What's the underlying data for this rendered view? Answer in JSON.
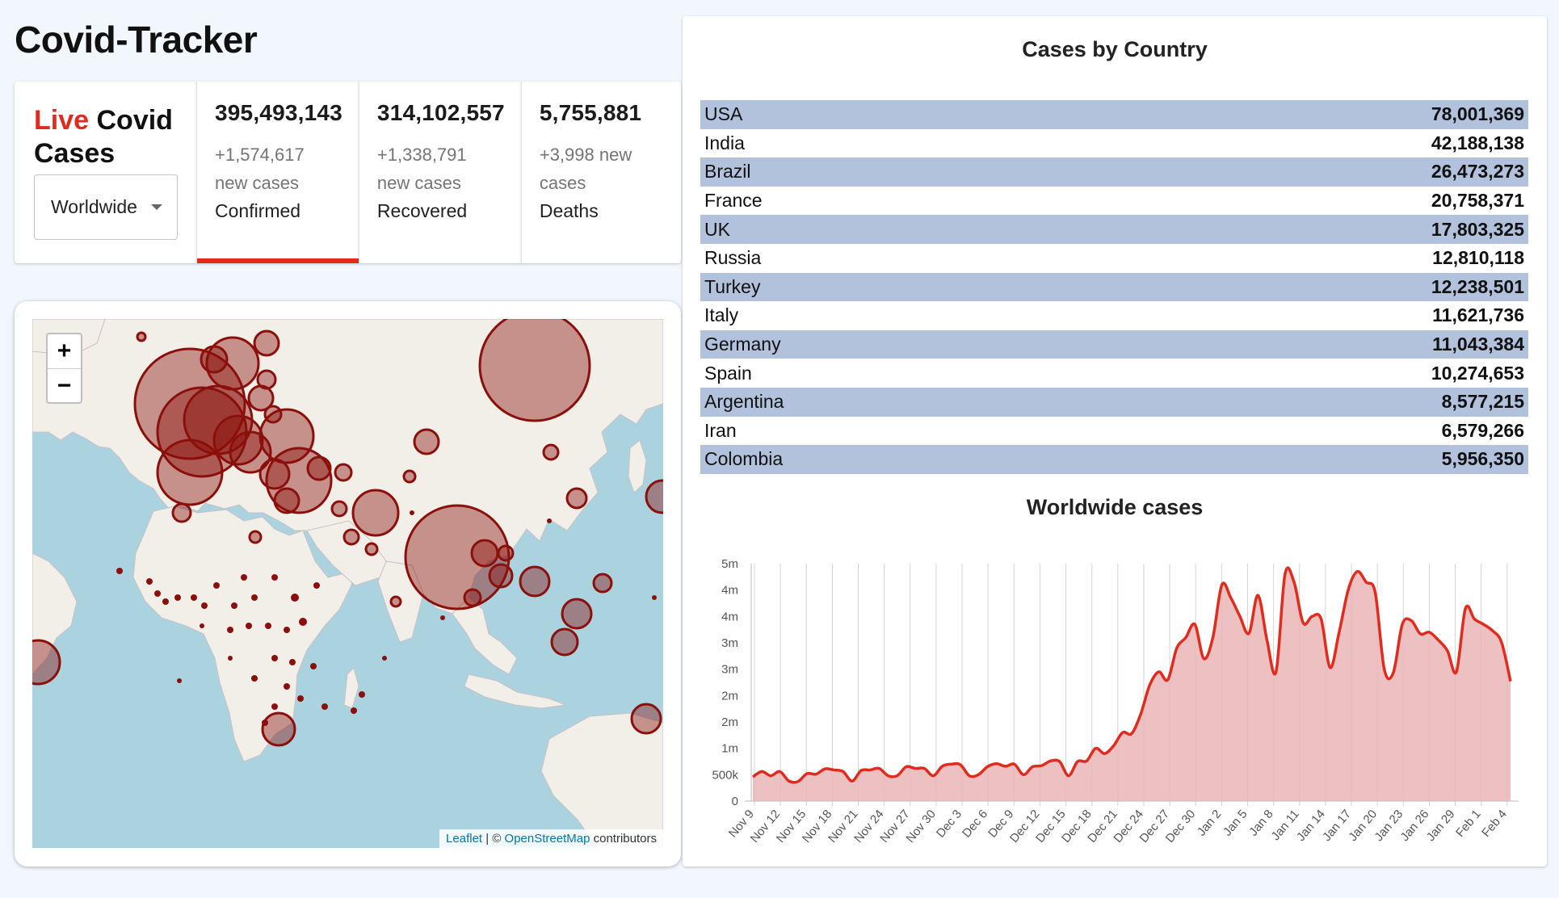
{
  "app": {
    "title": "Covid-Tracker"
  },
  "stats": {
    "heading_live": "Live",
    "heading_rest": "Covid Cases",
    "country_select": {
      "value": "Worldwide"
    },
    "boxes": [
      {
        "total": "395,493,143",
        "new_line1": "+1,574,617",
        "new_line2": "new cases",
        "label": "Confirmed",
        "active": true
      },
      {
        "total": "314,102,557",
        "new_line1": "+1,338,791",
        "new_line2": "new cases",
        "label": "Recovered",
        "active": false
      },
      {
        "total": "5,755,881",
        "new_line1": "+3,998 new",
        "new_line2": "cases",
        "label": "Deaths",
        "active": false
      }
    ],
    "accent_color": "#e02c1f"
  },
  "map": {
    "zoom_in": "+",
    "zoom_out": "−",
    "attribution": {
      "leaflet": "Leaflet",
      "separator": " | © ",
      "osm": "OpenStreetMap",
      "suffix": " contributors"
    }
  },
  "table": {
    "title": "Cases by Country",
    "rows": [
      {
        "country": "USA",
        "cases": "78,001,369"
      },
      {
        "country": "India",
        "cases": "42,188,138"
      },
      {
        "country": "Brazil",
        "cases": "26,473,273"
      },
      {
        "country": "France",
        "cases": "20,758,371"
      },
      {
        "country": "UK",
        "cases": "17,803,325"
      },
      {
        "country": "Russia",
        "cases": "12,810,118"
      },
      {
        "country": "Turkey",
        "cases": "12,238,501"
      },
      {
        "country": "Italy",
        "cases": "11,621,736"
      },
      {
        "country": "Germany",
        "cases": "11,043,384"
      },
      {
        "country": "Spain",
        "cases": "10,274,653"
      },
      {
        "country": "Argentina",
        "cases": "8,577,215"
      },
      {
        "country": "Iran",
        "cases": "6,579,266"
      },
      {
        "country": "Colombia",
        "cases": "5,956,350"
      }
    ]
  },
  "chart_data": {
    "type": "area",
    "title": "Worldwide cases",
    "xlabel": "",
    "ylabel": "",
    "x_ticks": [
      "Nov 9",
      "Nov 12",
      "Nov 15",
      "Nov 18",
      "Nov 21",
      "Nov 24",
      "Nov 27",
      "Nov 30",
      "Dec 3",
      "Dec 6",
      "Dec 9",
      "Dec 12",
      "Dec 15",
      "Dec 18",
      "Dec 21",
      "Dec 24",
      "Dec 27",
      "Dec 30",
      "Jan 2",
      "Jan 5",
      "Jan 8",
      "Jan 11",
      "Jan 14",
      "Jan 17",
      "Jan 20",
      "Jan 23",
      "Jan 26",
      "Jan 29",
      "Feb 1",
      "Feb 4"
    ],
    "y_tick_labels": [
      "0",
      "500k",
      "1m",
      "2m",
      "2m",
      "3m",
      "3m",
      "4m",
      "4m",
      "5m"
    ],
    "ylim": [
      0,
      4500000
    ],
    "line_color": "#e02c1f",
    "fill_color": "#eab6b6",
    "grid": true,
    "series": [
      {
        "values": [
          460000,
          560000,
          480000,
          560000,
          380000,
          370000,
          520000,
          510000,
          610000,
          590000,
          560000,
          380000,
          580000,
          590000,
          620000,
          480000,
          480000,
          650000,
          620000,
          620000,
          480000,
          660000,
          700000,
          690000,
          480000,
          500000,
          650000,
          710000,
          660000,
          700000,
          500000,
          650000,
          670000,
          760000,
          750000,
          480000,
          750000,
          760000,
          1000000,
          900000,
          1050000,
          1300000,
          1280000,
          1650000,
          2200000,
          2450000,
          2300000,
          2900000,
          3100000,
          3350000,
          2700000,
          3100000,
          4100000,
          3850000,
          3500000,
          3180000,
          3900000,
          3050000,
          2450000,
          4300000,
          4150000,
          3380000,
          3500000,
          3450000,
          2530000,
          3200000,
          4000000,
          4350000,
          4150000,
          3950000,
          2500000,
          2430000,
          3350000,
          3420000,
          3170000,
          3200000,
          3050000,
          2850000,
          2450000,
          3650000,
          3450000,
          3350000,
          3230000,
          3010000,
          2270000
        ]
      }
    ]
  }
}
